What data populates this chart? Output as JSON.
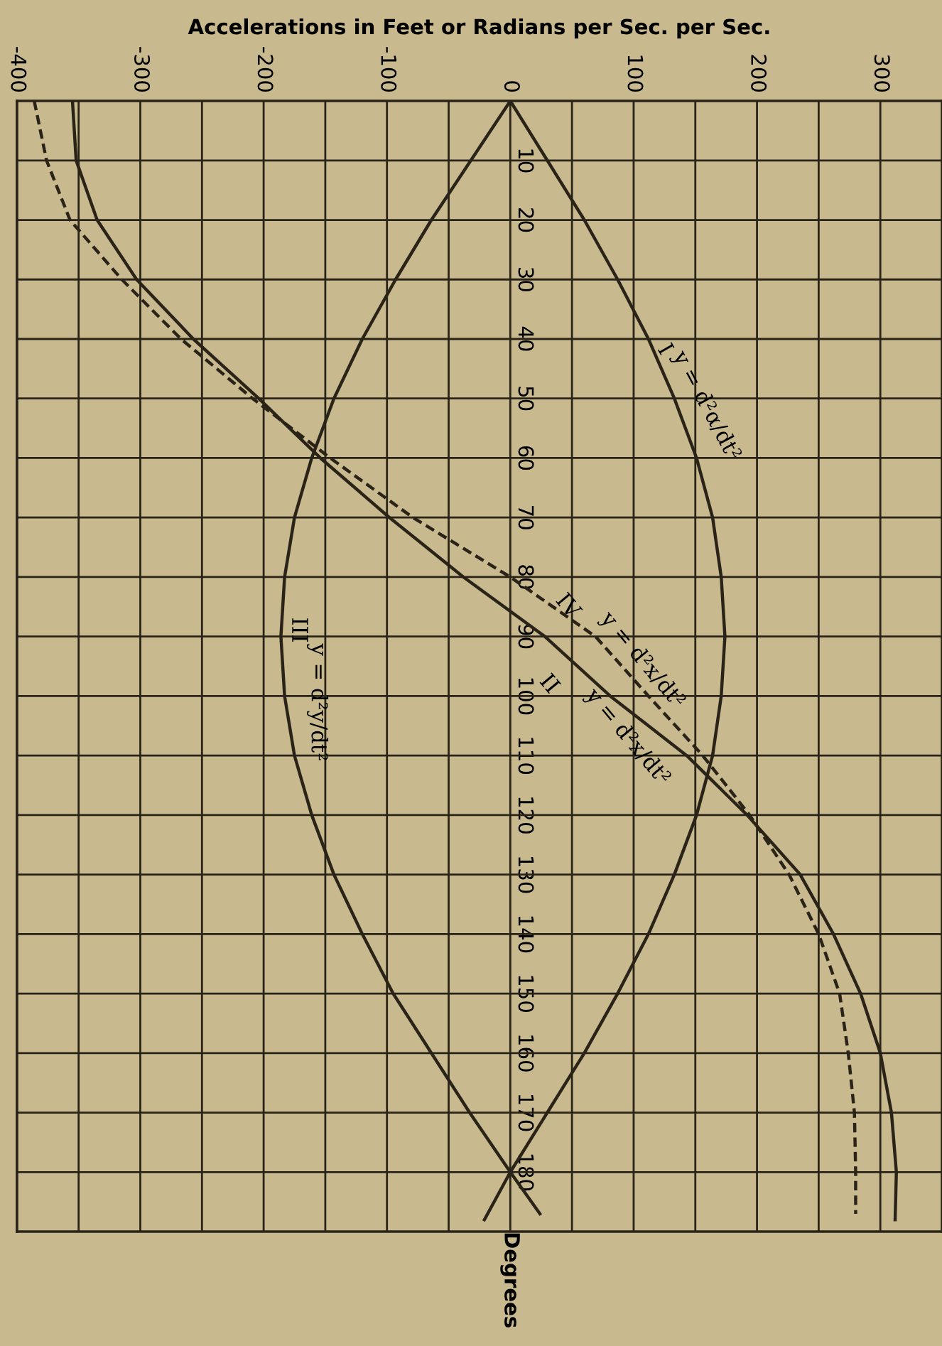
{
  "chart_data": {
    "type": "line",
    "orientation": "horizontal",
    "xlabel": "Accelerations in Feet or Radians per Sec. per Sec.",
    "ylabel": "Degrees",
    "xlim": [
      -400,
      350
    ],
    "ylim": [
      190,
      0
    ],
    "xticks": [
      -400,
      {
        "value": -350,
        "label": null
      },
      -300,
      {
        "value": -250,
        "label": null
      },
      -200,
      {
        "value": -150,
        "label": null
      },
      -100,
      {
        "value": -50,
        "label": null
      },
      0,
      {
        "value": 50,
        "label": null
      },
      100,
      {
        "value": 150,
        "label": null
      },
      200,
      {
        "value": 250,
        "label": null
      },
      300
    ],
    "yticks": [
      10,
      20,
      30,
      40,
      50,
      60,
      70,
      80,
      90,
      100,
      110,
      120,
      130,
      140,
      150,
      160,
      170,
      180
    ],
    "grid": true,
    "marker": "none",
    "series": [
      {
        "color": "#2a2418",
        "line_style": "solid",
        "x": [
          0,
          10,
          20,
          30,
          40,
          50,
          60,
          70,
          80,
          90,
          100,
          110,
          120,
          130,
          140,
          150,
          160,
          170,
          180,
          188
        ],
        "values": [
          0,
          30,
          60,
          87,
          112,
          133,
          151,
          164,
          171,
          174,
          171,
          164,
          151,
          133,
          112,
          87,
          60,
          30,
          0,
          -21
        ]
      },
      {
        "color": "#2a2418",
        "line_style": "solid",
        "x": [
          0,
          10,
          20,
          30,
          40,
          50,
          60,
          70,
          80,
          90,
          100,
          110,
          120,
          130,
          140,
          150,
          160,
          170,
          180,
          188
        ],
        "values": [
          -355,
          -352,
          -335,
          -303,
          -257,
          -204,
          -154,
          -98,
          -38,
          28,
          81,
          143,
          192,
          235,
          262,
          284,
          300,
          309,
          313,
          312
        ]
      },
      {
        "color": "#2a2418",
        "line_style": "solid",
        "x": [
          0,
          10,
          20,
          30,
          40,
          50,
          60,
          70,
          80,
          90,
          100,
          110,
          120,
          130,
          140,
          150,
          160,
          170,
          180,
          187
        ],
        "values": [
          0,
          -32,
          -64,
          -93,
          -120,
          -143,
          -161,
          -175,
          -183,
          -186,
          -183,
          -175,
          -161,
          -143,
          -120,
          -95,
          -64,
          -33,
          0,
          24
        ]
      },
      {
        "color": "#2a2418",
        "line_style": "dashed",
        "x": [
          0,
          10,
          20,
          30,
          40,
          50,
          60,
          70,
          80,
          90,
          100,
          110,
          120,
          130,
          140,
          150,
          160,
          170,
          180,
          187
        ],
        "values": [
          -386,
          -376,
          -357,
          -315,
          -267,
          -209,
          -146,
          -79,
          0,
          69,
          112,
          156,
          194,
          226,
          250,
          267,
          274,
          279,
          280,
          280
        ]
      }
    ],
    "annotations": [
      "I",
      "y = d²α/dt²",
      "II",
      "y = d²x/dt²",
      "III",
      "y = d²y/dt²",
      "IV",
      "y = d²x/dt²"
    ]
  }
}
